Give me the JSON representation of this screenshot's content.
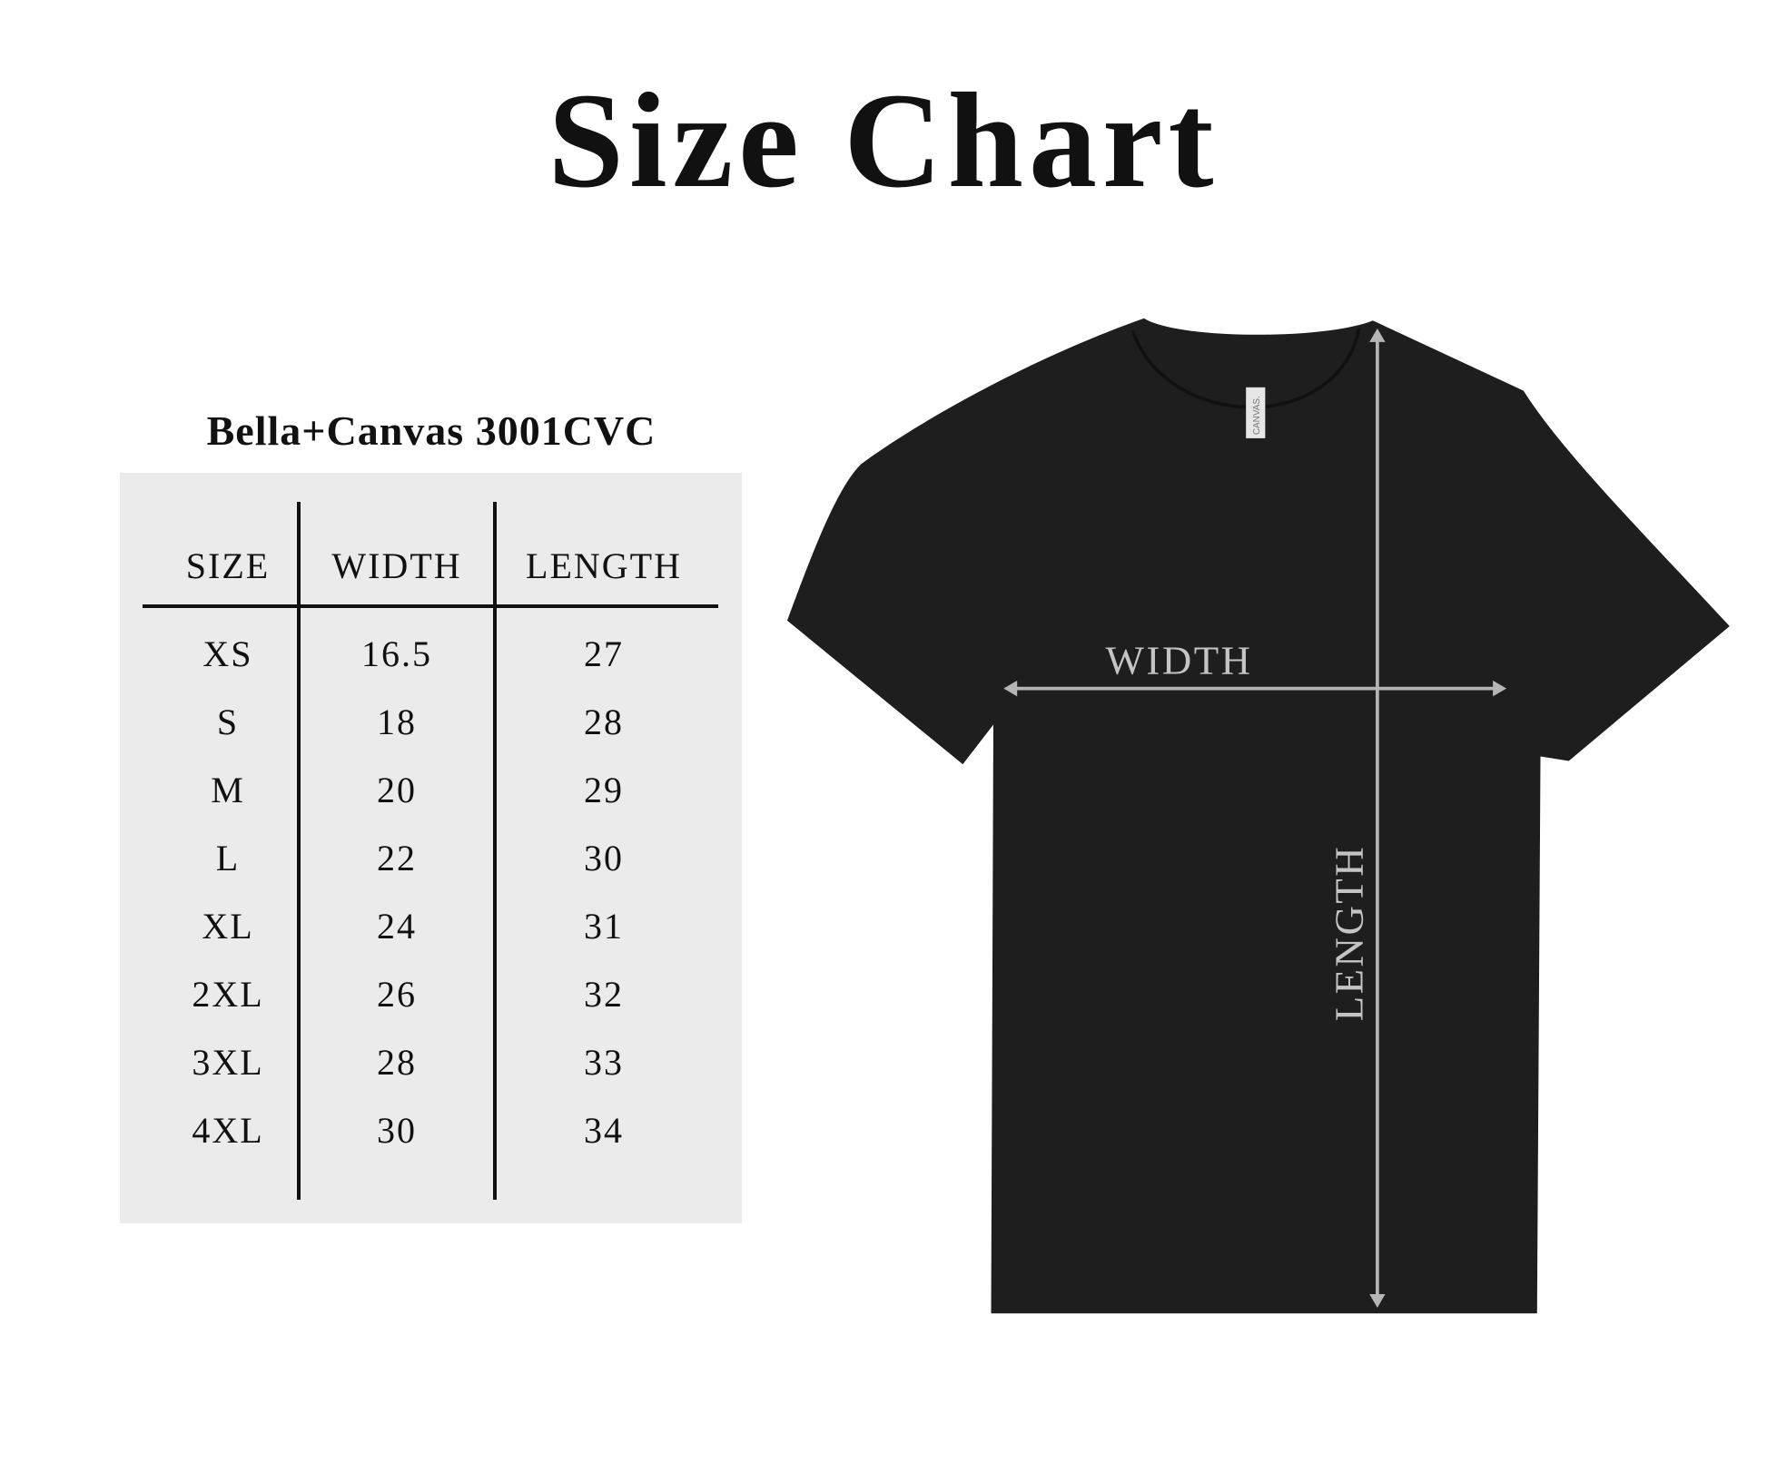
{
  "title": "Size Chart",
  "subtitle": "Bella+Canvas 3001CVC",
  "table": {
    "headers": [
      "SIZE",
      "WIDTH",
      "LENGTH"
    ],
    "rows": [
      [
        "XS",
        "16.5",
        "27"
      ],
      [
        "S",
        "18",
        "28"
      ],
      [
        "M",
        "20",
        "29"
      ],
      [
        "L",
        "22",
        "30"
      ],
      [
        "XL",
        "24",
        "31"
      ],
      [
        "2XL",
        "26",
        "32"
      ],
      [
        "3XL",
        "28",
        "33"
      ],
      [
        "4XL",
        "30",
        "34"
      ]
    ]
  },
  "diagram": {
    "width_label": "WIDTH",
    "length_label": "LENGTH",
    "tag_text": "CANVAS.",
    "shirt_color": "#1e1e1e",
    "arrow_color": "#b5b5b5",
    "table_bg": "#ebebeb"
  }
}
